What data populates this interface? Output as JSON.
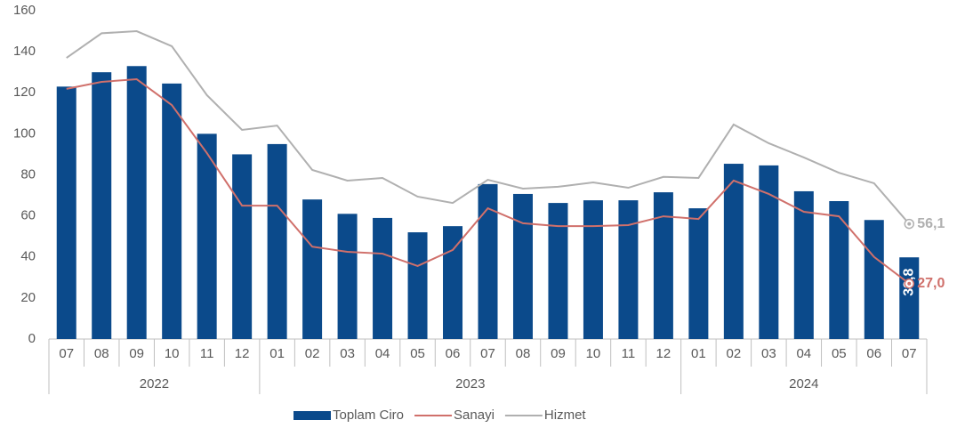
{
  "chart_data": {
    "type": "bar_line",
    "categories": [
      "07",
      "08",
      "09",
      "10",
      "11",
      "12",
      "01",
      "02",
      "03",
      "04",
      "05",
      "06",
      "07",
      "08",
      "09",
      "10",
      "11",
      "12",
      "01",
      "02",
      "03",
      "04",
      "05",
      "06",
      "07"
    ],
    "groups": [
      {
        "label": "2022",
        "span": 6
      },
      {
        "label": "2023",
        "span": 12
      },
      {
        "label": "2024",
        "span": 7
      }
    ],
    "series": [
      {
        "name": "Toplam Ciro",
        "type": "bar",
        "color": "#0b4a8b",
        "values": [
          123,
          130,
          133,
          124.5,
          100,
          90,
          95,
          68,
          61,
          59,
          52,
          55,
          75.5,
          70.7,
          66.3,
          67.6,
          67.6,
          71.5,
          63.7,
          85.4,
          84.6,
          72,
          67.2,
          58,
          39.8
        ],
        "value_labels": [
          null,
          null,
          null,
          null,
          null,
          null,
          null,
          null,
          null,
          null,
          null,
          null,
          null,
          null,
          null,
          null,
          null,
          null,
          null,
          null,
          null,
          null,
          null,
          null,
          "39,8"
        ]
      },
      {
        "name": "Sanayi",
        "type": "line",
        "color": "#d0706b",
        "values": [
          121.9,
          125.3,
          126.6,
          114,
          90.6,
          65,
          65,
          45,
          42.5,
          41.6,
          35.6,
          43.4,
          63.7,
          56.4,
          55,
          55,
          55.5,
          59.8,
          58.5,
          77.2,
          70.7,
          62,
          59.8,
          40,
          27.0
        ],
        "value_labels": [
          null,
          null,
          null,
          null,
          null,
          null,
          null,
          null,
          null,
          null,
          null,
          null,
          null,
          null,
          null,
          null,
          null,
          null,
          null,
          null,
          null,
          null,
          null,
          null,
          "27,0"
        ]
      },
      {
        "name": "Hizmet",
        "type": "line",
        "color": "#b0b0b0",
        "values": [
          137,
          149,
          150,
          142.7,
          118.8,
          101.9,
          104,
          82.4,
          77.2,
          78.5,
          69.4,
          66.3,
          77.6,
          73.3,
          74.2,
          76.3,
          73.7,
          79,
          78.5,
          104.5,
          95.4,
          88.5,
          81,
          75.9,
          56.1
        ],
        "value_labels": [
          null,
          null,
          null,
          null,
          null,
          null,
          null,
          null,
          null,
          null,
          null,
          null,
          null,
          null,
          null,
          null,
          null,
          null,
          null,
          null,
          null,
          null,
          null,
          null,
          "56,1"
        ]
      }
    ],
    "ylim": [
      0,
      160
    ],
    "yticks": [
      0,
      20,
      40,
      60,
      80,
      100,
      120,
      140,
      160
    ],
    "legend": "bottom"
  }
}
